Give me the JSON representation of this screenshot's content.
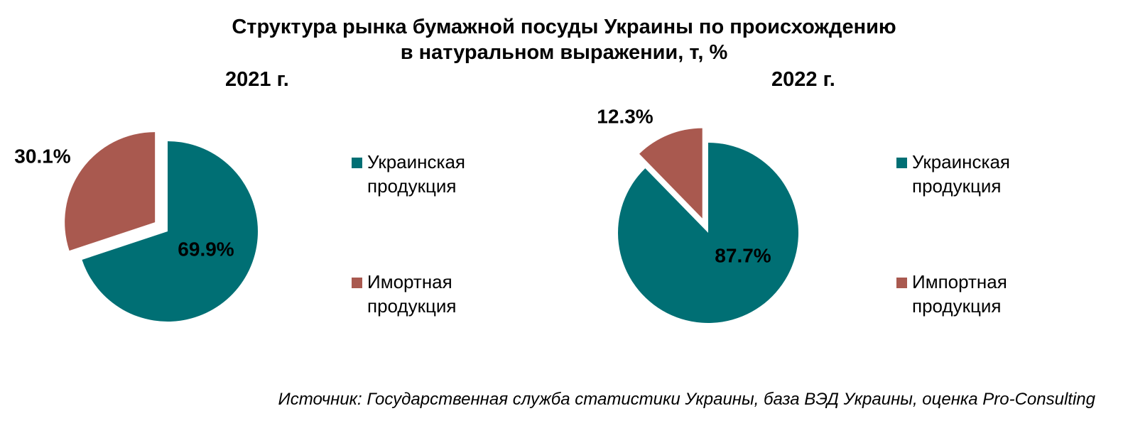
{
  "title_line1": "Структура рынка бумажной посуды Украины по происхождению",
  "title_line2": "в натуральном выражении, т, %",
  "colors": {
    "ukrainian": "#006f74",
    "import": "#a9594f"
  },
  "chart_data": [
    {
      "type": "pie",
      "title": "2021 г.",
      "slices": [
        {
          "name_line1": "Украинская",
          "name_line2": "продукция",
          "value": 69.9,
          "label": "69.9%"
        },
        {
          "name_line1": "Имортная",
          "name_line2": "продукция",
          "value": 30.1,
          "label": "30.1%"
        }
      ]
    },
    {
      "type": "pie",
      "title": "2022 г.",
      "slices": [
        {
          "name_line1": "Украинская",
          "name_line2": "продукция",
          "value": 87.7,
          "label": "87.7%"
        },
        {
          "name_line1": "Импортная",
          "name_line2": "продукция",
          "value": 12.3,
          "label": "12.3%"
        }
      ]
    }
  ],
  "source": "Источник: Государственная служба статистики Украины, база ВЭД Украины, оценка Pro-Consulting"
}
